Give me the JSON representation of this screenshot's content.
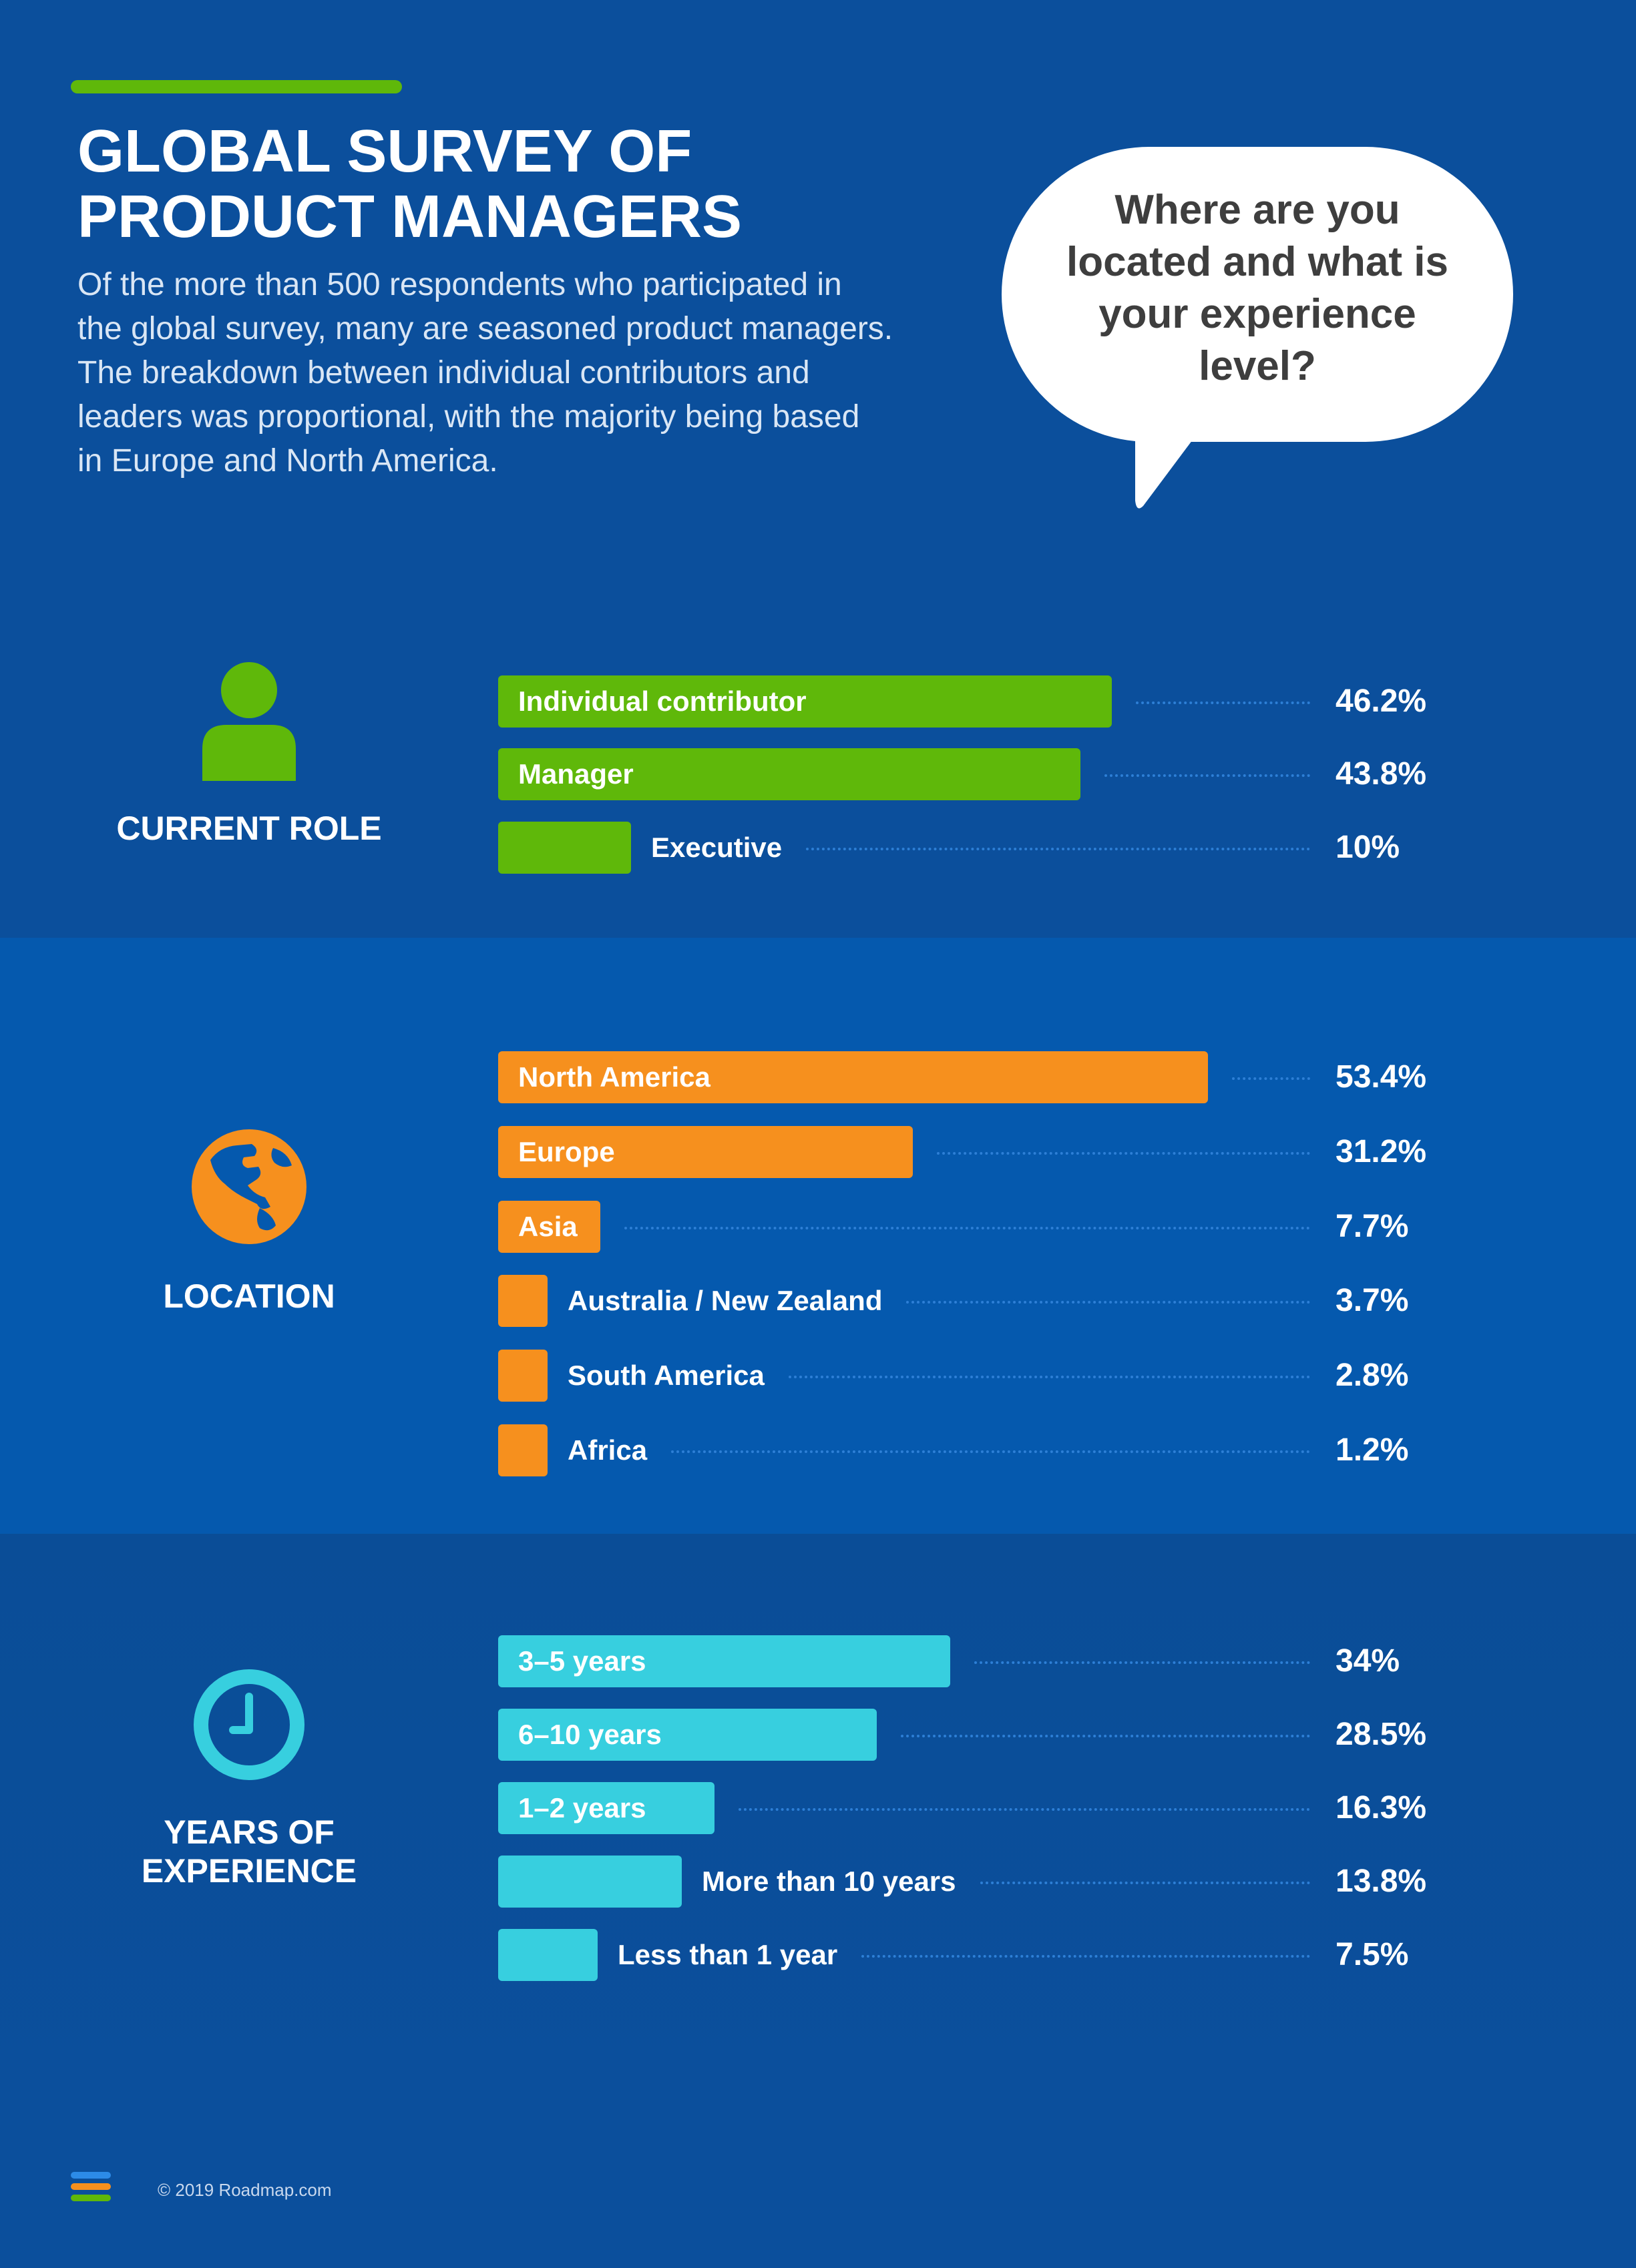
{
  "header": {
    "title_line1": "GLOBAL SURVEY OF",
    "title_line2": "PRODUCT MANAGERS",
    "intro_lines": [
      "Of the more than 500 respondents who participated in",
      "the global survey, many are seasoned product managers.",
      "The breakdown between individual contributors and",
      "leaders was proportional, with the majority being based",
      "in Europe and North America."
    ],
    "bubble_lines": [
      "Where are you",
      "located and what is",
      "your experience",
      "level?"
    ]
  },
  "colors": {
    "background": "#0b4f9c",
    "accent_green": "#5fb80a",
    "role_bar": "#5fb80a",
    "location_bar": "#f6901e",
    "experience_bar": "#37cfdf",
    "leader_dots": "#2d7fd6"
  },
  "icons": {
    "role": "person-icon",
    "location": "globe-icon",
    "experience": "clock-icon",
    "footer": "roadmap-logo-icon"
  },
  "footer": {
    "copyright": "© 2019 Roadmap.com"
  },
  "chart_data": [
    {
      "type": "bar",
      "orientation": "horizontal",
      "title": "CURRENT ROLE",
      "categories": [
        "Individual contributor",
        "Manager",
        "Executive"
      ],
      "values": [
        46.2,
        43.8,
        10
      ],
      "value_labels": [
        "46.2%",
        "43.8%",
        "10%"
      ],
      "unit": "%",
      "color": "#5fb80a"
    },
    {
      "type": "bar",
      "orientation": "horizontal",
      "title": "LOCATION",
      "categories": [
        "North America",
        "Europe",
        "Asia",
        "Australia / New Zealand",
        "South America",
        "Africa"
      ],
      "values": [
        53.4,
        31.2,
        7.7,
        3.7,
        2.8,
        1.2
      ],
      "value_labels": [
        "53.4%",
        "31.2%",
        "7.7%",
        "3.7%",
        "2.8%",
        "1.2%"
      ],
      "unit": "%",
      "color": "#f6901e"
    },
    {
      "type": "bar",
      "orientation": "horizontal",
      "title_lines": [
        "YEARS OF",
        "EXPERIENCE"
      ],
      "categories": [
        "3–5 years",
        "6–10 years",
        "1–2 years",
        "More than 10 years",
        "Less than 1 year"
      ],
      "values": [
        34,
        28.5,
        16.3,
        13.8,
        7.5
      ],
      "value_labels": [
        "34%",
        "28.5%",
        "16.3%",
        "13.8%",
        "7.5%"
      ],
      "unit": "%",
      "color": "#37cfdf"
    }
  ]
}
